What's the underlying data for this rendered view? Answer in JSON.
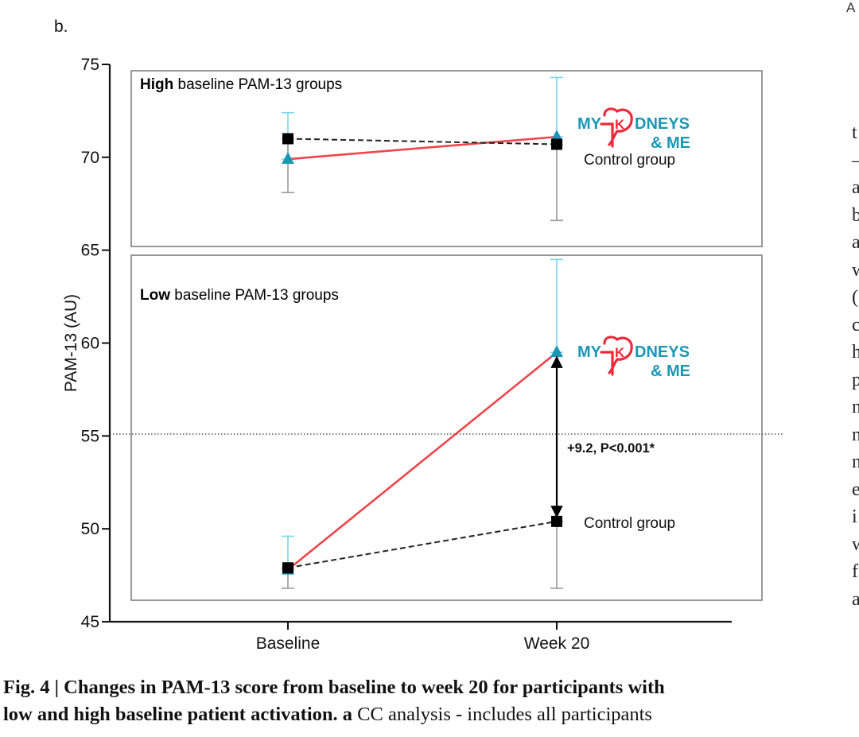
{
  "panel_label": "b.",
  "corner_fragment": "A",
  "right_column_letters": [
    "t",
    "–",
    "a",
    "b",
    "a",
    "w",
    "(",
    "c",
    "h",
    "p",
    "n",
    "n",
    "n",
    "e",
    "i",
    "w",
    "f",
    "a"
  ],
  "caption": {
    "bold": "Fig. 4 | Changes in PAM-13 score from baseline to week 20 for participants with low and high baseline patient activation.",
    "bold_line1": "Fig. 4 | Changes in PAM-13 score from baseline to week 20 for participants with",
    "bold_line2": "low and high baseline patient activation.",
    "a_label": "a",
    "rest": "CC analysis - includes all participants"
  },
  "logo": {
    "text_left": "MY",
    "text_right": "DNEYS",
    "text_bottom": "& ME",
    "k_letter": "K"
  },
  "colors": {
    "intervention_line": "#f0454a",
    "intervention_marker": "#1a97b5",
    "intervention_errorbar": "#7fd3ea",
    "control_line": "#222222",
    "control_errorbar": "#9a9a9a",
    "logo_red": "#ee2a3a",
    "logo_teal": "#1a97b5"
  },
  "chart_data": {
    "type": "line",
    "ylabel": "PAM-13 (AU)",
    "xlabel": "",
    "ylim": [
      45,
      75
    ],
    "yticks": [
      45,
      50,
      55,
      60,
      65,
      70,
      75
    ],
    "categories": [
      "Baseline",
      "Week 20"
    ],
    "reference_line": 55.1,
    "panels": [
      {
        "title_bold": "High",
        "title_rest": "baseline PAM-13 groups",
        "series": [
          {
            "name": "MY KIDNEYS & ME",
            "values": [
              69.9,
              71.1
            ],
            "error_upper": [
              72.4,
              74.3
            ],
            "error_lower": [
              69.9,
              71.1
            ]
          },
          {
            "name": "Control group",
            "values": [
              71.0,
              70.7
            ],
            "error_upper": [
              71.0,
              70.7
            ],
            "error_lower": [
              68.1,
              66.6
            ]
          }
        ]
      },
      {
        "title_bold": "Low",
        "title_rest": "baseline PAM-13 groups",
        "series": [
          {
            "name": "MY KIDNEYS & ME",
            "values": [
              47.8,
              59.5
            ],
            "error_upper": [
              49.6,
              64.5
            ],
            "error_lower": [
              47.8,
              59.5
            ]
          },
          {
            "name": "Control group",
            "values": [
              47.9,
              50.4
            ],
            "error_upper": [
              47.9,
              50.4
            ],
            "error_lower": [
              46.8,
              46.8
            ]
          }
        ],
        "annotation": "+9.2, P<0.001*"
      }
    ]
  }
}
